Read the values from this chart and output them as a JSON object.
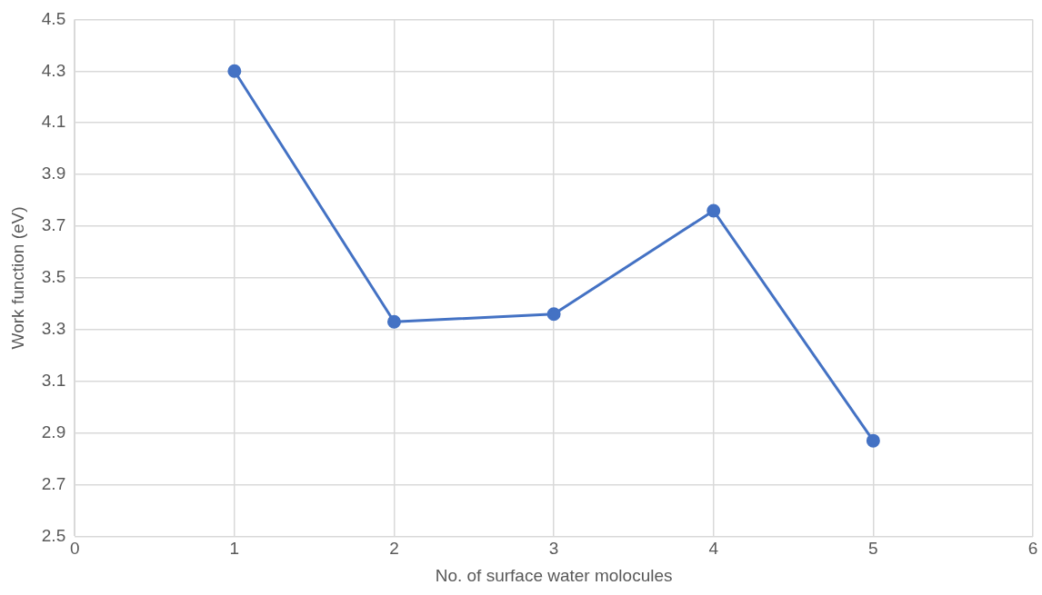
{
  "chart_data": {
    "type": "line",
    "xlabel": "No. of surface water molocules",
    "ylabel": "Work function (eV)",
    "x": [
      1,
      2,
      3,
      4,
      5
    ],
    "series": [
      {
        "color": "#4472c4",
        "values": [
          4.3,
          3.33,
          3.36,
          3.76,
          2.87
        ]
      }
    ],
    "xlim": [
      0,
      6
    ],
    "xticks": [
      0,
      1,
      2,
      3,
      4,
      5,
      6
    ],
    "ylim": [
      2.5,
      4.5
    ],
    "yticks": [
      {
        "value": 2.5,
        "label": "2.5"
      },
      {
        "value": 2.7,
        "label": "2.7"
      },
      {
        "value": 2.9,
        "label": "2.9"
      },
      {
        "value": 3.1,
        "label": "3.1"
      },
      {
        "value": 3.3,
        "label": "3.3"
      },
      {
        "value": 3.5,
        "label": "3.5"
      },
      {
        "value": 3.7,
        "label": "3.7"
      },
      {
        "value": 3.9,
        "label": "3.9"
      },
      {
        "value": 4.1,
        "label": "4.1"
      },
      {
        "value": 4.3,
        "label": "4.3"
      },
      {
        "value": 4.5,
        "label": "4.5"
      }
    ],
    "grid": true,
    "marker": "circle",
    "line_style": "solid",
    "legend": false
  }
}
